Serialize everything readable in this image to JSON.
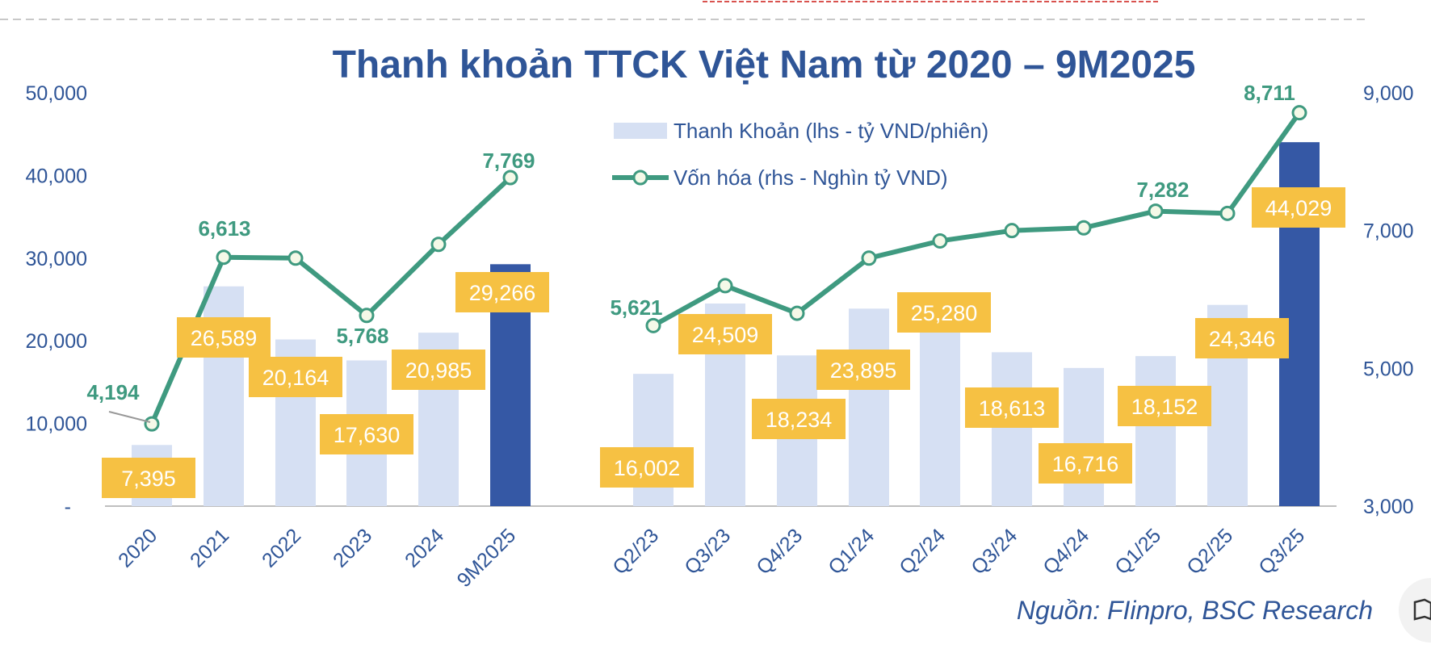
{
  "chart_data": {
    "type": "bar",
    "title": "Thanh khoản TTCK Việt Nam từ 2020 – 9M2025",
    "categories": [
      "2020",
      "2021",
      "2022",
      "2023",
      "2024",
      "9M2025",
      "Q2/23",
      "Q3/23",
      "Q4/23",
      "Q1/24",
      "Q2/24",
      "Q3/24",
      "Q4/24",
      "Q1/25",
      "Q2/25",
      "Q3/25"
    ],
    "y_left": {
      "ylim": [
        0,
        50000
      ],
      "ticks": [
        "-",
        "10,000",
        "20,000",
        "30,000",
        "40,000",
        "50,000"
      ]
    },
    "y_right": {
      "ylim": [
        3000,
        9000
      ],
      "ticks": [
        "3,000",
        "5,000",
        "7,000",
        "9,000"
      ]
    },
    "legend_position": "top-center",
    "grid": false,
    "series": [
      {
        "name": "Thanh Khoản (lhs - tỷ VND/phiên)",
        "kind": "bar",
        "axis": "left",
        "values": [
          7395,
          26589,
          20164,
          17630,
          20985,
          29266,
          16002,
          24509,
          18234,
          23895,
          25280,
          18613,
          16716,
          18152,
          24346,
          44029
        ],
        "labels": [
          "7,395",
          "26,589",
          "20,164",
          "17,630",
          "20,985",
          "29,266",
          "16,002",
          "24,509",
          "18,234",
          "23,895",
          "25,280",
          "18,613",
          "16,716",
          "18,152",
          "24,346",
          "44,029"
        ],
        "highlight_indices": [
          5,
          15
        ],
        "color": "#d6e0f3",
        "highlight_color": "#3558a5"
      },
      {
        "name": "Vốn hóa (rhs - Nghìn tỷ VND)",
        "kind": "line",
        "axis": "right",
        "segments": [
          [
            0,
            5
          ],
          [
            6,
            15
          ]
        ],
        "values": [
          4194,
          6613,
          6600,
          5768,
          6800,
          7769,
          5621,
          6200,
          5800,
          6600,
          6850,
          7000,
          7040,
          7282,
          7250,
          8711
        ],
        "labels": [
          "4,194",
          "6,613",
          "",
          "5,768",
          "",
          "7,769",
          "5,621",
          "",
          "",
          "",
          "",
          "",
          "",
          "7,282",
          "",
          "8,711"
        ],
        "color": "#3f9a80"
      }
    ],
    "label_box_color": "#f6c143",
    "source": "Nguồn: FIinpro, BSC Research"
  }
}
